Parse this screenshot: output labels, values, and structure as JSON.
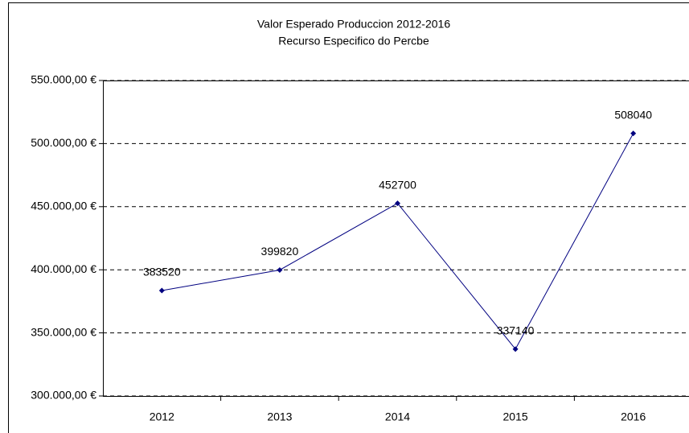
{
  "chart_data": {
    "type": "line",
    "title": "Valor Esperado Produccion 2012-2016",
    "subtitle": "Recurso Especifico do Percbe",
    "categories": [
      "2012",
      "2013",
      "2014",
      "2015",
      "2016"
    ],
    "series": [
      {
        "name": "Valor Esperado",
        "color": "#000080",
        "values": [
          383520,
          399820,
          452700,
          337140,
          508040
        ]
      }
    ],
    "ylim": [
      300000,
      550000
    ],
    "yticks": [
      {
        "value": 300000,
        "label": "300.000,00 €"
      },
      {
        "value": 350000,
        "label": "350.000,00 €"
      },
      {
        "value": 400000,
        "label": "400.000,00 €"
      },
      {
        "value": 450000,
        "label": "450.000,00 €"
      },
      {
        "value": 500000,
        "label": "500.000,00 €"
      },
      {
        "value": 550000,
        "label": "550.000,00 €"
      }
    ],
    "grid": true,
    "data_labels": true
  }
}
